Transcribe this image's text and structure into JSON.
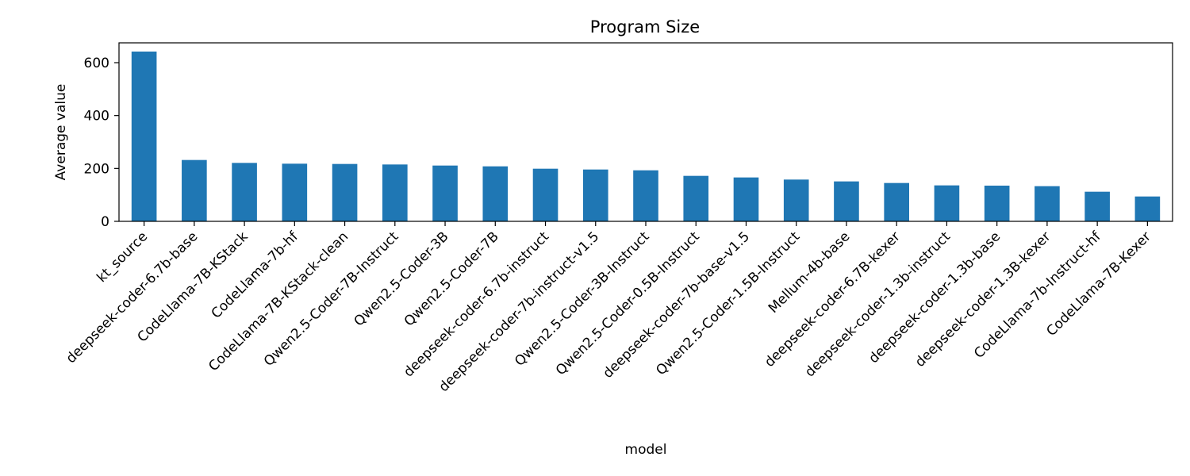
{
  "chart_data": {
    "type": "bar",
    "title": "Program Size",
    "xlabel": "model",
    "ylabel": "Average value",
    "ylim": [
      0,
      675
    ],
    "yticks": [
      0,
      200,
      400,
      600
    ],
    "grid": false,
    "bar_color": "#1f77b4",
    "categories": [
      "kt_source",
      "deepseek-coder-6.7b-base",
      "CodeLlama-7B-KStack",
      "CodeLlama-7b-hf",
      "CodeLlama-7B-KStack-clean",
      "Qwen2.5-Coder-7B-Instruct",
      "Qwen2.5-Coder-3B",
      "Qwen2.5-Coder-7B",
      "deepseek-coder-6.7b-instruct",
      "deepseek-coder-7b-instruct-v1.5",
      "Qwen2.5-Coder-3B-Instruct",
      "Qwen2.5-Coder-0.5B-Instruct",
      "deepseek-coder-7b-base-v1.5",
      "Qwen2.5-Coder-1.5B-Instruct",
      "Mellum-4b-base",
      "deepseek-coder-6.7B-kexer",
      "deepseek-coder-1.3b-instruct",
      "deepseek-coder-1.3b-base",
      "deepseek-coder-1.3B-kexer",
      "CodeLlama-7b-Instruct-hf",
      "CodeLlama-7B-Kexer"
    ],
    "values": [
      642,
      232,
      221,
      218,
      217,
      215,
      211,
      208,
      199,
      196,
      193,
      172,
      166,
      158,
      151,
      145,
      136,
      135,
      133,
      112,
      94
    ]
  }
}
